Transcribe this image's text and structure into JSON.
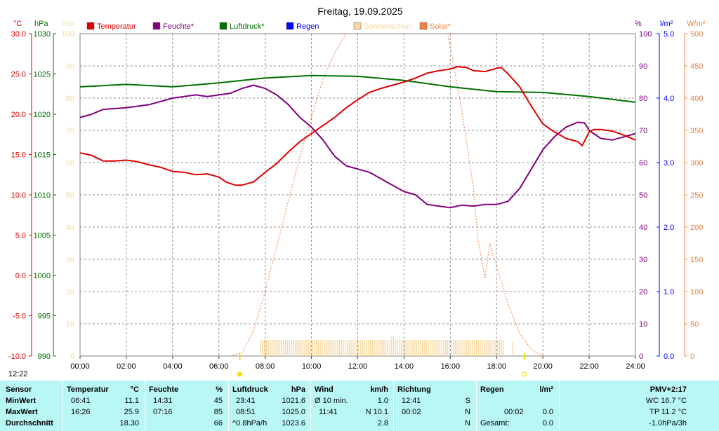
{
  "title": "Freitag, 19.09.2025",
  "left_axes": {
    "temp_unit": "°C",
    "press_unit": "hPa",
    "sun_unit": "min",
    "temp_ticks": [
      "30.0",
      "25.0",
      "20.0",
      "15.0",
      "10.0",
      "5.0",
      "0.0",
      "-5.0",
      "-10.0"
    ],
    "press_ticks": [
      "1030",
      "1025",
      "1020",
      "1015",
      "1010",
      "1005",
      "1000",
      "995",
      "990"
    ],
    "sun_ticks": [
      "100",
      "90",
      "80",
      "70",
      "60",
      "50",
      "40",
      "30",
      "20",
      "10",
      "0"
    ]
  },
  "right_axes": {
    "hum_unit": "%",
    "rain_unit": "l/m²",
    "solar_unit": "W/m²",
    "hum_ticks": [
      "100",
      "90",
      "80",
      "70",
      "60",
      "50",
      "40",
      "30",
      "20",
      "10",
      "0"
    ],
    "rain_ticks": [
      "5.0",
      "4.0",
      "3.0",
      "2.0",
      "1.0",
      "0.0"
    ],
    "solar_ticks": [
      "500",
      "450",
      "400",
      "350",
      "300",
      "250",
      "200",
      "150",
      "100",
      "50",
      "0"
    ]
  },
  "x_ticks": [
    "00:00",
    "02:00",
    "04:00",
    "06:00",
    "08:00",
    "10:00",
    "12:00",
    "14:00",
    "16:00",
    "18:00",
    "20:00",
    "22:00",
    "24:00"
  ],
  "legend": [
    {
      "label": "Temperatur",
      "color": "#e00000"
    },
    {
      "label": "Feuchte*",
      "color": "#800080"
    },
    {
      "label": "Luftdruck*",
      "color": "#007000"
    },
    {
      "label": "Regen",
      "color": "#0000ff"
    },
    {
      "label": "Sonnenschein",
      "color": "#f8d8a0"
    },
    {
      "label": "Solar*",
      "color": "#f08040"
    }
  ],
  "colors": {
    "temp": "#e00000",
    "humidity": "#800080",
    "pressure": "#007000",
    "sunshine": "#f8d8a0",
    "solar": "#f08040",
    "rain": "#0000ff",
    "temp_axis": "#e00000",
    "press_axis": "#007000",
    "sun_axis": "#f0d8a0",
    "hum_axis": "#800080",
    "rain_axis": "#0000ff",
    "solar_axis": "#f08040",
    "panel": "#b9f7f5",
    "sun_marker": "#f0e000"
  },
  "time_label": "12:22",
  "chart_data": {
    "type": "line",
    "title": "Freitag, 19.09.2025",
    "x_label": "",
    "x_range": [
      0,
      24
    ],
    "x_tick_labels": [
      "00:00",
      "02:00",
      "04:00",
      "06:00",
      "08:00",
      "10:00",
      "12:00",
      "14:00",
      "16:00",
      "18:00",
      "20:00",
      "22:00",
      "24:00"
    ],
    "grid": true,
    "legend_position": "top",
    "axes": {
      "temperature": {
        "unit": "°C",
        "range": [
          -10,
          30
        ],
        "side": "left"
      },
      "pressure": {
        "unit": "hPa",
        "range": [
          990,
          1030
        ],
        "side": "left"
      },
      "sunshine": {
        "unit": "min",
        "range": [
          0,
          100
        ],
        "side": "left"
      },
      "humidity": {
        "unit": "%",
        "range": [
          0,
          100
        ],
        "side": "right"
      },
      "rain": {
        "unit": "l/m²",
        "range": [
          0,
          5
        ],
        "side": "right"
      },
      "solar": {
        "unit": "W/m²",
        "range": [
          0,
          500
        ],
        "side": "right"
      }
    },
    "series": [
      {
        "name": "Temperatur",
        "axis": "temperature",
        "color": "#e00000",
        "points": [
          [
            0,
            15.2
          ],
          [
            0.5,
            14.9
          ],
          [
            1,
            14.2
          ],
          [
            1.5,
            14.2
          ],
          [
            2,
            14.3
          ],
          [
            2.5,
            14.1
          ],
          [
            3,
            13.7
          ],
          [
            3.5,
            13.4
          ],
          [
            4,
            12.9
          ],
          [
            4.5,
            12.8
          ],
          [
            5,
            12.5
          ],
          [
            5.5,
            12.6
          ],
          [
            6,
            12.2
          ],
          [
            6.3,
            11.6
          ],
          [
            6.7,
            11.2
          ],
          [
            7,
            11.2
          ],
          [
            7.5,
            11.6
          ],
          [
            8,
            12.8
          ],
          [
            8.5,
            13.9
          ],
          [
            9,
            15.3
          ],
          [
            9.5,
            16.6
          ],
          [
            10,
            17.6
          ],
          [
            10.5,
            18.6
          ],
          [
            11,
            19.6
          ],
          [
            11.5,
            20.8
          ],
          [
            12,
            21.8
          ],
          [
            12.5,
            22.7
          ],
          [
            13,
            23.2
          ],
          [
            13.5,
            23.6
          ],
          [
            14,
            24.0
          ],
          [
            14.5,
            24.5
          ],
          [
            15,
            25.1
          ],
          [
            15.5,
            25.4
          ],
          [
            16,
            25.6
          ],
          [
            16.3,
            25.9
          ],
          [
            16.7,
            25.8
          ],
          [
            17,
            25.4
          ],
          [
            17.5,
            25.3
          ],
          [
            18,
            25.7
          ],
          [
            18.2,
            25.8
          ],
          [
            18.5,
            25.0
          ],
          [
            19,
            23.4
          ],
          [
            19.5,
            21.0
          ],
          [
            20,
            18.8
          ],
          [
            20.5,
            17.8
          ],
          [
            21,
            17.0
          ],
          [
            21.5,
            16.6
          ],
          [
            21.7,
            16.1
          ],
          [
            22,
            17.8
          ],
          [
            22.2,
            18.1
          ],
          [
            22.5,
            18.1
          ],
          [
            23,
            17.9
          ],
          [
            23.5,
            17.4
          ],
          [
            24,
            16.8
          ]
        ]
      },
      {
        "name": "Feuchte*",
        "axis": "humidity",
        "color": "#800080",
        "points": [
          [
            0,
            74
          ],
          [
            0.5,
            75
          ],
          [
            1,
            76.5
          ],
          [
            2,
            77
          ],
          [
            3,
            78
          ],
          [
            4,
            80
          ],
          [
            5,
            81
          ],
          [
            5.5,
            80.5
          ],
          [
            6,
            81
          ],
          [
            6.5,
            81.5
          ],
          [
            7,
            83
          ],
          [
            7.5,
            84
          ],
          [
            8,
            83
          ],
          [
            8.5,
            81
          ],
          [
            9,
            78
          ],
          [
            9.5,
            74
          ],
          [
            10,
            71
          ],
          [
            10.5,
            67
          ],
          [
            11,
            62
          ],
          [
            11.5,
            59
          ],
          [
            12,
            58
          ],
          [
            12.5,
            57
          ],
          [
            13,
            55
          ],
          [
            13.5,
            53
          ],
          [
            14,
            51
          ],
          [
            14.5,
            50
          ],
          [
            15,
            47
          ],
          [
            15.5,
            46.5
          ],
          [
            16,
            46
          ],
          [
            16.5,
            46.8
          ],
          [
            17,
            46.5
          ],
          [
            17.5,
            47
          ],
          [
            18,
            47
          ],
          [
            18.5,
            48
          ],
          [
            19,
            52
          ],
          [
            19.5,
            58
          ],
          [
            20,
            64
          ],
          [
            20.5,
            68
          ],
          [
            21,
            71
          ],
          [
            21.5,
            72.5
          ],
          [
            21.8,
            72.3
          ],
          [
            22,
            70
          ],
          [
            22.5,
            67.5
          ],
          [
            23,
            67
          ],
          [
            23.5,
            68
          ],
          [
            24,
            69
          ]
        ]
      },
      {
        "name": "Luftdruck*",
        "axis": "pressure",
        "color": "#007000",
        "points": [
          [
            0,
            1023.4
          ],
          [
            2,
            1023.7
          ],
          [
            4,
            1023.4
          ],
          [
            6,
            1023.9
          ],
          [
            8,
            1024.5
          ],
          [
            10,
            1024.8
          ],
          [
            12,
            1024.7
          ],
          [
            14,
            1024.2
          ],
          [
            16,
            1023.4
          ],
          [
            18,
            1022.8
          ],
          [
            20,
            1022.7
          ],
          [
            22,
            1022.2
          ],
          [
            24,
            1021.5
          ]
        ]
      },
      {
        "name": "Solar*",
        "axis": "solar",
        "color": "#f08040",
        "points": [
          [
            6.5,
            0
          ],
          [
            7,
            5
          ],
          [
            7.5,
            40
          ],
          [
            8,
            100
          ],
          [
            8.5,
            170
          ],
          [
            9,
            240
          ],
          [
            9.5,
            310
          ],
          [
            10,
            370
          ],
          [
            10.5,
            430
          ],
          [
            11,
            470
          ],
          [
            11.5,
            500
          ],
          [
            12,
            560
          ],
          [
            13,
            640
          ],
          [
            14,
            660
          ],
          [
            15,
            620
          ],
          [
            15.5,
            560
          ],
          [
            16,
            480
          ],
          [
            16.5,
            380
          ],
          [
            17,
            260
          ],
          [
            17.2,
            180
          ],
          [
            17.5,
            120
          ],
          [
            17.7,
            175
          ],
          [
            18,
            140
          ],
          [
            18.5,
            80
          ],
          [
            19,
            35
          ],
          [
            19.5,
            10
          ],
          [
            20,
            0
          ]
        ]
      },
      {
        "name": "Sonnenschein",
        "axis": "sunshine",
        "color": "#f8d8a0",
        "bar_window": [
          7.8,
          18.3
        ],
        "points": [
          [
            7.8,
            5
          ],
          [
            18.3,
            5
          ],
          [
            13.5,
            6
          ],
          [
            18.7,
            4.5
          ]
        ]
      },
      {
        "name": "Regen",
        "axis": "rain",
        "color": "#0000ff",
        "points": []
      }
    ]
  },
  "stats": {
    "headers": {
      "sensor": "Sensor",
      "temp": "Temperatur",
      "temp_unit": "°C",
      "hum": "Feuchte",
      "hum_unit": "%",
      "press": "Luftdruck",
      "press_unit": "hPa",
      "wind": "Wind",
      "wind_unit": "km/h",
      "dir": "Richtung",
      "rain": "Regen",
      "rain_unit": "l/m²",
      "pmv": "PMV+2:17"
    },
    "rows": [
      {
        "label": "MinWert",
        "temp_time": "06:41",
        "temp_val": "11.1",
        "hum_time": "14:31",
        "hum_val": "45",
        "press_time": "23:41",
        "press_val": "1021.6",
        "wind_label": "Ø 10 min.",
        "wind_val": "1.0",
        "dir_time": "12:41",
        "dir_val": "S",
        "rain_time": "",
        "rain_val": "",
        "pmv": "WC 16.7 °C"
      },
      {
        "label": "MaxWert",
        "temp_time": "16:26",
        "temp_val": "25.9",
        "hum_time": "07:16",
        "hum_val": "85",
        "press_time": "08:51",
        "press_val": "1025.0",
        "wind_label": "11:41",
        "wind_val": "N 10.1",
        "dir_time": "00:02",
        "dir_val": "N",
        "rain_time": "00:02",
        "rain_val": "0.0",
        "pmv": "TP 11.2 °C"
      },
      {
        "label": "Durchschnitt",
        "temp_time": "",
        "temp_val": "18.30",
        "hum_time": "",
        "hum_val": "66",
        "press_time": "^0.8hPa/h",
        "press_val": "1023.6",
        "wind_label": "",
        "wind_val": "2.8",
        "dir_time": "",
        "dir_val": "N",
        "rain_time": "Gesamt:",
        "rain_val": "0.0",
        "pmv": "-1.0hPa/3h"
      }
    ]
  }
}
